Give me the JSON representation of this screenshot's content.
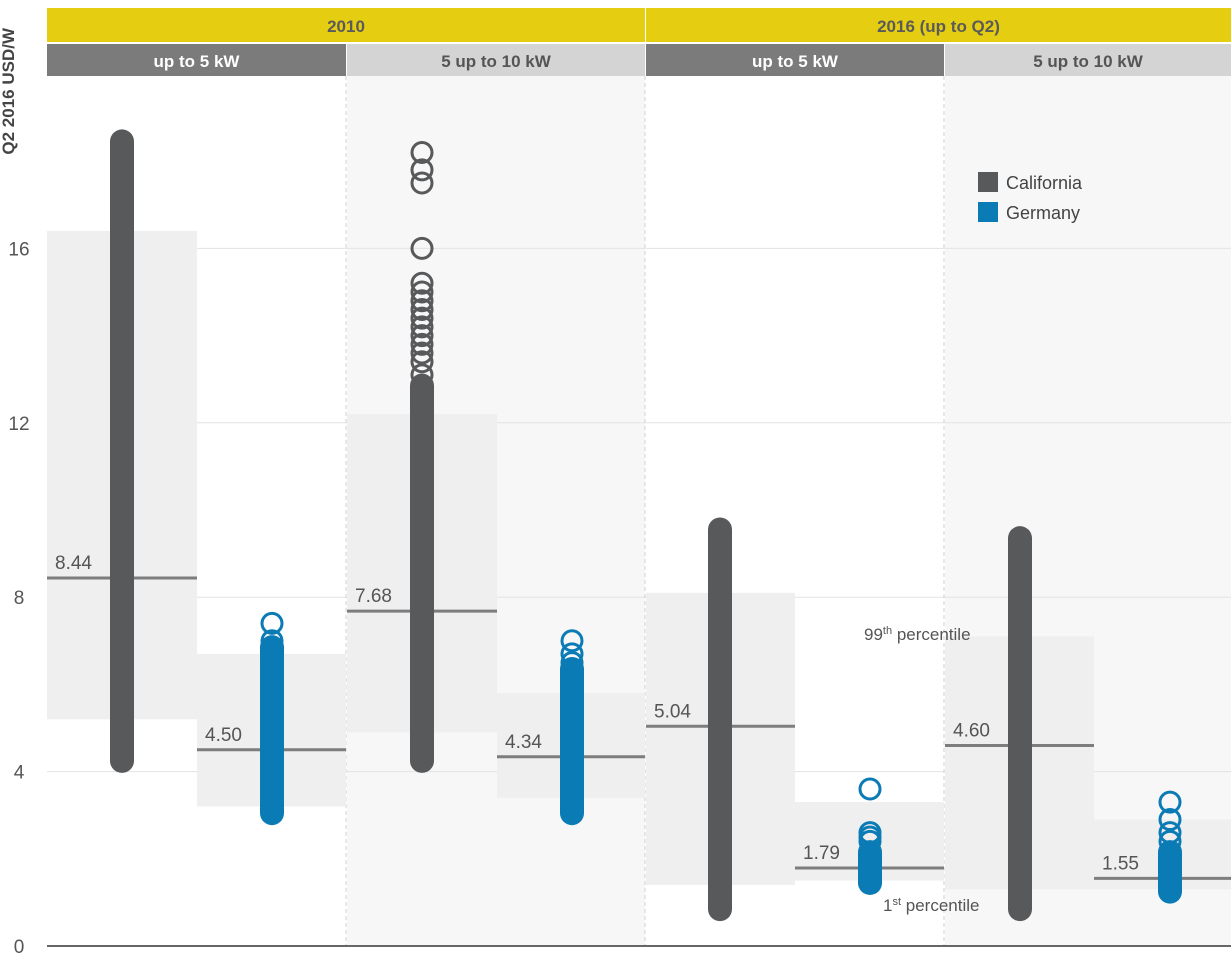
{
  "chart_data": {
    "type": "scatter",
    "title": "",
    "ylabel": "Q2 2016 USD/W",
    "ylim": [
      0,
      18.8
    ],
    "yticks": [
      0,
      4,
      8,
      12,
      16
    ],
    "grid": "horizontal",
    "legend_position": "top-right",
    "year_groups": [
      "2010",
      "2016 (up to Q2)"
    ],
    "size_classes": [
      "up to 5 kW",
      "5 up to 10 kW",
      "up to 5 kW",
      "5 up to 10 kW"
    ],
    "legend": [
      {
        "name": "California",
        "color": "#58595b"
      },
      {
        "name": "Germany",
        "color": "#0a7bb5"
      }
    ],
    "annotations": {
      "p99": "99th percentile",
      "p1": "1st percentile",
      "p99_sup": "th",
      "p1_sup": "st"
    },
    "series": [
      {
        "name": "California",
        "year": "2010",
        "size": "up to 5 kW",
        "min": 4.2,
        "max": 18.5,
        "p1": 5.2,
        "p99": 16.4,
        "median": 8.44,
        "median_label": "8.44",
        "outliers": []
      },
      {
        "name": "Germany",
        "year": "2010",
        "size": "up to 5 kW",
        "min": 3.0,
        "max": 6.9,
        "p1": 3.2,
        "p99": 6.7,
        "median": 4.5,
        "median_label": "4.50",
        "outliers": [
          7.4,
          7.0,
          6.8,
          6.6,
          6.5,
          6.3,
          6.1,
          5.9,
          5.7
        ]
      },
      {
        "name": "California",
        "year": "2010",
        "size": "5 up to 10 kW",
        "min": 4.2,
        "max": 12.9,
        "p1": 4.9,
        "p99": 12.2,
        "median": 7.68,
        "median_label": "7.68",
        "outliers": [
          18.2,
          17.8,
          17.5,
          16.0,
          15.2,
          15.0,
          14.8,
          14.6,
          14.4,
          14.2,
          14.0,
          13.8,
          13.6,
          13.4,
          13.1
        ]
      },
      {
        "name": "Germany",
        "year": "2010",
        "size": "5 up to 10 kW",
        "min": 3.0,
        "max": 6.4,
        "p1": 3.4,
        "p99": 5.8,
        "median": 4.34,
        "median_label": "4.34",
        "outliers": [
          7.0,
          6.7,
          6.5
        ]
      },
      {
        "name": "California",
        "year": "2016 (up to Q2)",
        "size": "up to 5 kW",
        "min": 0.8,
        "max": 9.6,
        "p1": 1.4,
        "p99": 8.1,
        "median": 5.04,
        "median_label": "5.04",
        "outliers": []
      },
      {
        "name": "Germany",
        "year": "2016 (up to Q2)",
        "size": "up to 5 kW",
        "min": 1.4,
        "max": 2.2,
        "p1": 1.5,
        "p99": 3.3,
        "median": 1.79,
        "median_label": "1.79",
        "outliers": [
          3.6,
          2.6,
          2.5,
          2.4
        ]
      },
      {
        "name": "California",
        "year": "2016 (up to Q2)",
        "size": "5 up to 10 kW",
        "min": 0.8,
        "max": 9.4,
        "p1": 1.3,
        "p99": 7.1,
        "median": 4.6,
        "median_label": "4.60",
        "outliers": []
      },
      {
        "name": "Germany",
        "year": "2016 (up to Q2)",
        "size": "5 up to 10 kW",
        "min": 1.2,
        "max": 2.2,
        "p1": 1.3,
        "p99": 2.9,
        "median": 1.55,
        "median_label": "1.55",
        "outliers": [
          3.3,
          2.9,
          2.6,
          2.4
        ]
      }
    ]
  }
}
